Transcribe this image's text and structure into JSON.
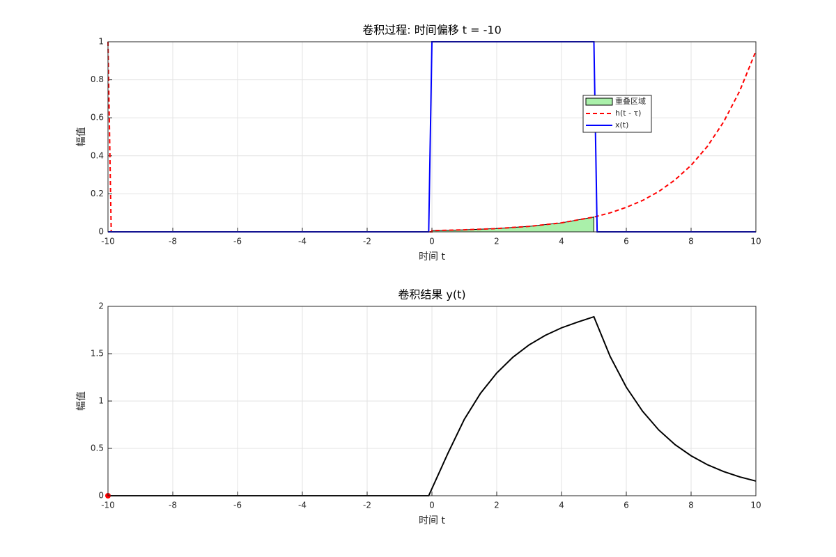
{
  "chart_data": [
    {
      "type": "line",
      "title": "卷积过程: 时间偏移 t = -10",
      "xlabel": "时间 t",
      "ylabel": "幅值",
      "xlim": [
        -10,
        10
      ],
      "ylim": [
        0,
        1
      ],
      "xticks": [
        -10,
        -8,
        -6,
        -4,
        -2,
        0,
        2,
        4,
        6,
        8,
        10
      ],
      "yticks": [
        0,
        0.2,
        0.4,
        0.6,
        0.8,
        1
      ],
      "grid": true,
      "series": [
        {
          "name": "重叠区域",
          "kind": "area",
          "color": "#aaf0aa",
          "edge_color": "#000000",
          "x": [
            0,
            1,
            2,
            3,
            4,
            5
          ],
          "values": [
            0.0064,
            0.0106,
            0.0174,
            0.0287,
            0.0474,
            0.078
          ]
        },
        {
          "name": "h(t - τ)",
          "kind": "line",
          "line_style": "dashed",
          "color": "#ff0000",
          "x": [
            -10,
            -9.9,
            0,
            0,
            1,
            2,
            3,
            4,
            5,
            5.5,
            6,
            6.5,
            7,
            7.5,
            8,
            8.5,
            9,
            9.5,
            10
          ],
          "values": [
            1,
            0,
            0,
            0.0064,
            0.0106,
            0.0174,
            0.0287,
            0.0474,
            0.078,
            0.1,
            0.129,
            0.165,
            0.212,
            0.273,
            0.35,
            0.449,
            0.577,
            0.741,
            0.951
          ]
        },
        {
          "name": "x(t)",
          "kind": "line",
          "line_style": "solid",
          "color": "#0000ff",
          "x": [
            -10,
            -0.1,
            0,
            5,
            5.1,
            10
          ],
          "values": [
            0,
            0,
            1,
            1,
            0,
            0
          ]
        }
      ]
    },
    {
      "type": "line",
      "title": "卷积结果 y(t)",
      "xlabel": "时间 t",
      "ylabel": "幅值",
      "xlim": [
        -10,
        10
      ],
      "ylim": [
        0,
        2
      ],
      "xticks": [
        -10,
        -8,
        -6,
        -4,
        -2,
        0,
        2,
        4,
        6,
        8,
        10
      ],
      "yticks": [
        0,
        0.5,
        1,
        1.5,
        2
      ],
      "grid": true,
      "series": [
        {
          "kind": "line",
          "line_style": "solid",
          "color": "#000000",
          "x": [
            -10,
            -0.1,
            0.5,
            1,
            1.5,
            2,
            2.5,
            3,
            3.5,
            4,
            4.5,
            5,
            5.5,
            6,
            6.5,
            7,
            7.5,
            8,
            8.5,
            9,
            9.5,
            10
          ],
          "values": [
            0,
            0,
            0.453,
            0.807,
            1.082,
            1.296,
            1.463,
            1.593,
            1.694,
            1.773,
            1.834,
            1.89,
            1.472,
            1.146,
            0.893,
            0.695,
            0.541,
            0.422,
            0.328,
            0.256,
            0.199,
            0.155
          ]
        }
      ],
      "marker": {
        "x": -10,
        "y": 0,
        "color": "#ff0000"
      }
    }
  ]
}
